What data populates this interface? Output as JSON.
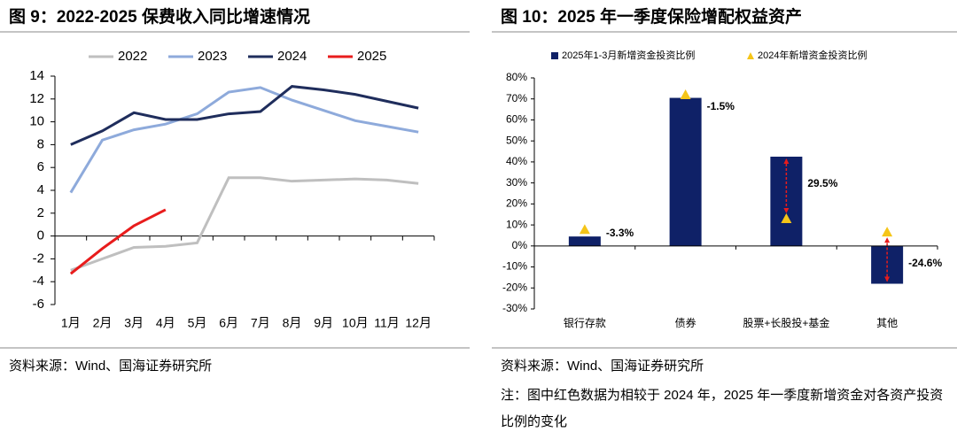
{
  "chart_data": [
    {
      "type": "line",
      "title": "图 9：2022-2025 保费收入同比增速情况",
      "categories": [
        "1月",
        "2月",
        "3月",
        "4月",
        "5月",
        "6月",
        "7月",
        "8月",
        "9月",
        "10月",
        "11月",
        "12月"
      ],
      "series": [
        {
          "name": "2022",
          "color": "#bfbfbf",
          "values": [
            -3.0,
            -2.0,
            -1.0,
            -0.9,
            -0.6,
            5.1,
            5.1,
            4.8,
            4.9,
            5.0,
            4.9,
            4.6
          ]
        },
        {
          "name": "2023",
          "color": "#8eaadb",
          "values": [
            3.8,
            8.4,
            9.3,
            9.8,
            10.7,
            12.6,
            13.0,
            11.9,
            11.0,
            10.1,
            9.6,
            9.1
          ]
        },
        {
          "name": "2024",
          "color": "#1f2d5c",
          "values": [
            8.0,
            9.2,
            10.8,
            10.2,
            10.2,
            10.7,
            10.9,
            13.1,
            12.8,
            12.4,
            11.8,
            11.2
          ]
        },
        {
          "name": "2025",
          "color": "#e81c1c",
          "values": [
            -3.3,
            -1.1,
            0.9,
            2.3,
            null,
            null,
            null,
            null,
            null,
            null,
            null,
            null
          ]
        }
      ],
      "ylim": [
        -6,
        14
      ],
      "yticks": [
        -6,
        -4,
        -2,
        0,
        2,
        4,
        6,
        8,
        10,
        12,
        14
      ],
      "source": "资料来源：Wind、国海证券研究所"
    },
    {
      "type": "bar",
      "title": "图 10：2025 年一季度保险增配权益资产",
      "categories": [
        "银行存款",
        "债券",
        "股票+长股投+基金",
        "其他"
      ],
      "series": [
        {
          "name": "2025年1-3月新增资金投资比例",
          "color": "#0f2167",
          "values": [
            4.5,
            70.5,
            42.5,
            -18
          ]
        },
        {
          "name": "2024年新增资金投资比例",
          "color": "#f5c518",
          "marker": "triangle",
          "values": [
            7.8,
            72,
            13,
            6.6
          ]
        }
      ],
      "annotations": [
        "-3.3%",
        "-1.5%",
        "29.5%",
        "-24.6%"
      ],
      "ylim": [
        -30,
        80
      ],
      "yticks": [
        {
          "value": -30,
          "label": "-30%"
        },
        {
          "value": -20,
          "label": "-20%"
        },
        {
          "value": -10,
          "label": "-10%"
        },
        {
          "value": 0,
          "label": "0%"
        },
        {
          "value": 10,
          "label": "10%"
        },
        {
          "value": 20,
          "label": "20%"
        },
        {
          "value": 30,
          "label": "30%"
        },
        {
          "value": 40,
          "label": "40%"
        },
        {
          "value": 50,
          "label": "50%"
        },
        {
          "value": 60,
          "label": "60%"
        },
        {
          "value": 70,
          "label": "70%"
        },
        {
          "value": 80,
          "label": "80%"
        }
      ],
      "source": "资料来源：Wind、国海证券研究所",
      "note": "注：图中红色数据为相较于 2024 年，2025 年一季度新增资金对各资产投资比例的变化"
    }
  ]
}
